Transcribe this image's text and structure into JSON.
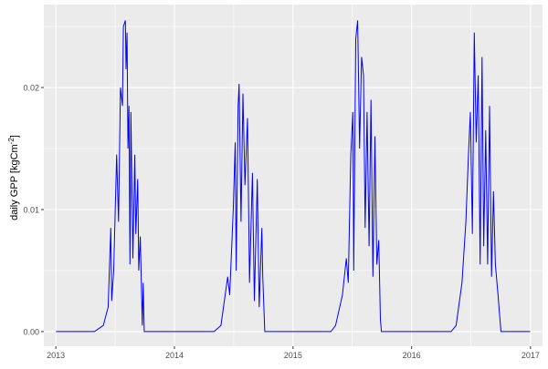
{
  "chart_data": {
    "type": "line",
    "title": "",
    "xlabel": "",
    "ylabel": "daily GPP [kgCm",
    "ylabel_sup": "-2",
    "ylabel_end": "]",
    "xlim": [
      "2012-11-25",
      "2017-02-07"
    ],
    "ylim": [
      -0.0012,
      0.0268
    ],
    "x_ticks": [
      "2013",
      "2014",
      "2015",
      "2016",
      "2017"
    ],
    "y_ticks": [
      "0.00",
      "0.01",
      "0.02"
    ],
    "y_tick_values": [
      0,
      0.01,
      0.02
    ],
    "grid": true,
    "legend": "none",
    "colors": {
      "line": "#0000ff",
      "panel": "#ebebeb",
      "grid": "#ffffff"
    },
    "series": [
      {
        "points": [
          [
            "2013-01-01",
            0
          ],
          [
            "2013-04-30",
            0
          ],
          [
            "2013-05-27",
            0.0005
          ],
          [
            "2013-06-11",
            0.002
          ],
          [
            "2013-06-19",
            0.0085
          ],
          [
            "2013-06-22",
            0.0025
          ],
          [
            "2013-06-28",
            0.005
          ],
          [
            "2013-07-07",
            0.0145
          ],
          [
            "2013-07-13",
            0.009
          ],
          [
            "2013-07-19",
            0.02
          ],
          [
            "2013-07-25",
            0.0185
          ],
          [
            "2013-07-28",
            0.025
          ],
          [
            "2013-08-03",
            0.0255
          ],
          [
            "2013-08-05",
            0.0215
          ],
          [
            "2013-08-08",
            0.0245
          ],
          [
            "2013-08-11",
            0.015
          ],
          [
            "2013-08-14",
            0.0185
          ],
          [
            "2013-08-17",
            0.0055
          ],
          [
            "2013-08-20",
            0.018
          ],
          [
            "2013-08-23",
            0.012
          ],
          [
            "2013-08-26",
            0.006
          ],
          [
            "2013-09-01",
            0.0145
          ],
          [
            "2013-09-04",
            0.008
          ],
          [
            "2013-09-10",
            0.0125
          ],
          [
            "2013-09-13",
            0.005
          ],
          [
            "2013-09-18",
            0.0078
          ],
          [
            "2013-09-24",
            0.0005
          ],
          [
            "2013-09-27",
            0.004
          ],
          [
            "2013-09-30",
            0
          ],
          [
            "2014-05-03",
            0
          ],
          [
            "2014-05-24",
            0.0005
          ],
          [
            "2014-06-14",
            0.0045
          ],
          [
            "2014-06-20",
            0.003
          ],
          [
            "2014-07-01",
            0.01
          ],
          [
            "2014-07-07",
            0.0155
          ],
          [
            "2014-07-10",
            0.005
          ],
          [
            "2014-07-16",
            0.0185
          ],
          [
            "2014-07-19",
            0.0203
          ],
          [
            "2014-07-25",
            0.009
          ],
          [
            "2014-07-31",
            0.0195
          ],
          [
            "2014-08-06",
            0.012
          ],
          [
            "2014-08-14",
            0.0175
          ],
          [
            "2014-08-20",
            0.004
          ],
          [
            "2014-08-29",
            0.013
          ],
          [
            "2014-09-04",
            0.0025
          ],
          [
            "2014-09-13",
            0.0125
          ],
          [
            "2014-09-19",
            0.002
          ],
          [
            "2014-09-27",
            0.0085
          ],
          [
            "2014-09-30",
            0.0045
          ],
          [
            "2014-10-06",
            0
          ],
          [
            "2015-04-28",
            0
          ],
          [
            "2015-05-12",
            0.0005
          ],
          [
            "2015-06-02",
            0.003
          ],
          [
            "2015-06-14",
            0.006
          ],
          [
            "2015-06-20",
            0.004
          ],
          [
            "2015-06-28",
            0.0145
          ],
          [
            "2015-07-04",
            0.018
          ],
          [
            "2015-07-07",
            0.005
          ],
          [
            "2015-07-13",
            0.024
          ],
          [
            "2015-07-19",
            0.0255
          ],
          [
            "2015-07-25",
            0.015
          ],
          [
            "2015-07-31",
            0.0225
          ],
          [
            "2015-08-06",
            0.021
          ],
          [
            "2015-08-11",
            0.0085
          ],
          [
            "2015-08-17",
            0.018
          ],
          [
            "2015-08-23",
            0.007
          ],
          [
            "2015-08-29",
            0.019
          ],
          [
            "2015-09-04",
            0.0045
          ],
          [
            "2015-09-10",
            0.016
          ],
          [
            "2015-09-16",
            0.0055
          ],
          [
            "2015-09-22",
            0.0075
          ],
          [
            "2015-09-27",
            0.001
          ],
          [
            "2015-09-30",
            0
          ],
          [
            "2016-05-02",
            0
          ],
          [
            "2016-05-17",
            0.0005
          ],
          [
            "2016-06-04",
            0.004
          ],
          [
            "2016-06-16",
            0.009
          ],
          [
            "2016-06-24",
            0.0145
          ],
          [
            "2016-06-30",
            0.018
          ],
          [
            "2016-07-06",
            0.008
          ],
          [
            "2016-07-12",
            0.0245
          ],
          [
            "2016-07-18",
            0.0155
          ],
          [
            "2016-07-24",
            0.021
          ],
          [
            "2016-07-30",
            0.0055
          ],
          [
            "2016-08-05",
            0.0225
          ],
          [
            "2016-08-10",
            0.007
          ],
          [
            "2016-08-16",
            0.0165
          ],
          [
            "2016-08-22",
            0.0055
          ],
          [
            "2016-08-28",
            0.0185
          ],
          [
            "2016-09-03",
            0.0045
          ],
          [
            "2016-09-09",
            0.0115
          ],
          [
            "2016-09-15",
            0.0055
          ],
          [
            "2016-09-23",
            0.003
          ],
          [
            "2016-09-29",
            0.001
          ],
          [
            "2016-10-02",
            0
          ],
          [
            "2016-12-31",
            0
          ]
        ]
      }
    ]
  }
}
